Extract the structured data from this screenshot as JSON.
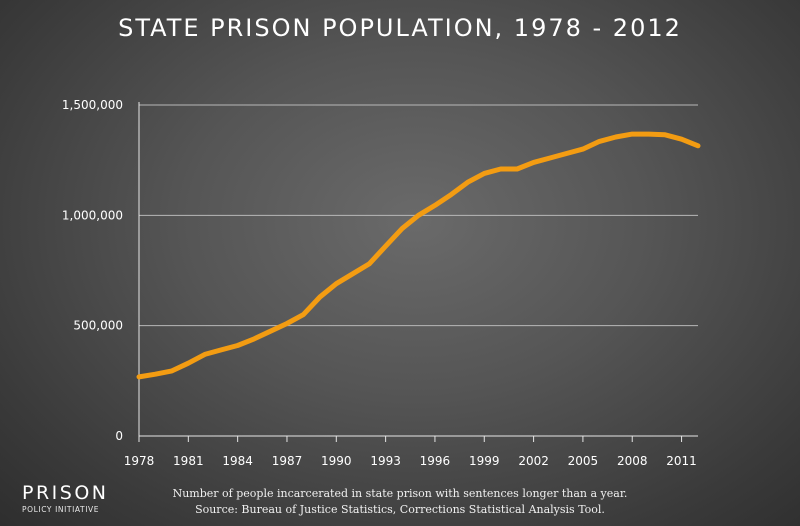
{
  "chart_data": {
    "type": "line",
    "title": "STATE PRISON POPULATION, 1978 - 2012",
    "xlabel": "",
    "ylabel": "",
    "ylim": [
      0,
      1500000
    ],
    "xlim": [
      1978,
      2012
    ],
    "grid": true,
    "line_color": "#f39c12",
    "yticks": [
      0,
      500000,
      1000000,
      1500000
    ],
    "ytick_labels": [
      "0",
      "500,000",
      "1,000,000",
      "1,500,000"
    ],
    "xticks": [
      1978,
      1981,
      1984,
      1987,
      1990,
      1993,
      1996,
      1999,
      2002,
      2005,
      2008,
      2011
    ],
    "xtick_labels": [
      "1978",
      "1981",
      "1984",
      "1987",
      "1990",
      "1993",
      "1996",
      "1999",
      "2002",
      "2005",
      "2008",
      "2011"
    ],
    "x": [
      1978,
      1979,
      1980,
      1981,
      1982,
      1983,
      1984,
      1985,
      1986,
      1987,
      1988,
      1989,
      1990,
      1991,
      1992,
      1993,
      1994,
      1995,
      1996,
      1997,
      1998,
      1999,
      2000,
      2001,
      2002,
      2003,
      2004,
      2005,
      2006,
      2007,
      2008,
      2009,
      2010,
      2011,
      2012
    ],
    "y": [
      268000,
      280000,
      295000,
      330000,
      370000,
      390000,
      410000,
      440000,
      475000,
      510000,
      550000,
      630000,
      690000,
      735000,
      780000,
      860000,
      940000,
      1000000,
      1045000,
      1095000,
      1150000,
      1190000,
      1210000,
      1210000,
      1240000,
      1260000,
      1280000,
      1300000,
      1335000,
      1355000,
      1368000,
      1368000,
      1365000,
      1345000,
      1315000
    ]
  },
  "branding": {
    "name": "PRISON",
    "subtitle": "POLICY INITIATIVE"
  },
  "caption": {
    "line1": "Number of people incarcerated in state prison with sentences longer than a year.",
    "line2": "Source: Bureau of Justice Statistics, Corrections Statistical Analysis Tool."
  }
}
